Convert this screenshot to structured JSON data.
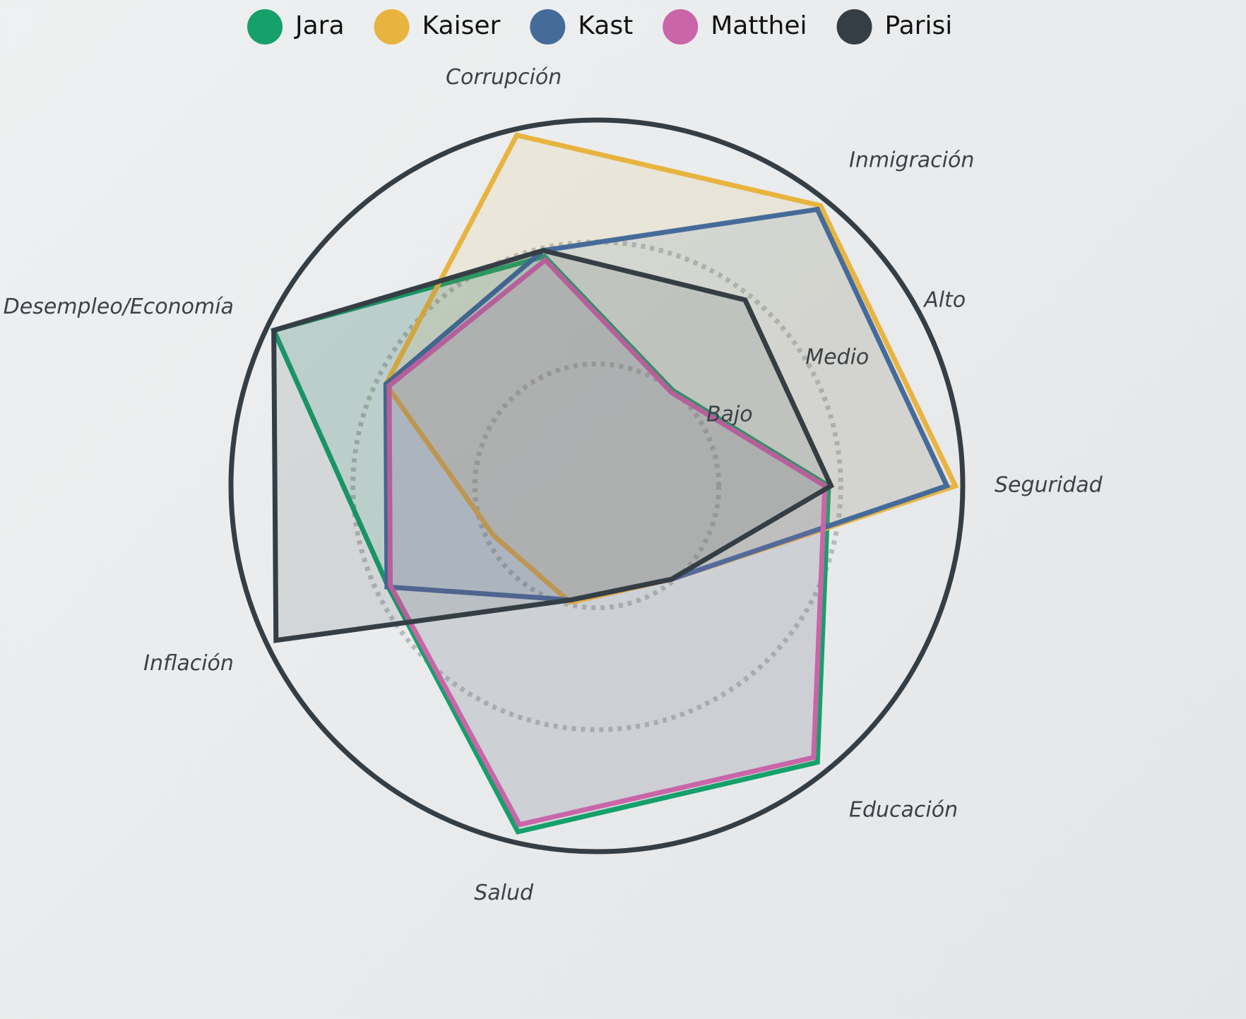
{
  "chart_data": {
    "type": "radar",
    "categories": [
      "Seguridad",
      "Inmigración",
      "Corrupción",
      "Desempleo/Economía",
      "Inflación",
      "Salud",
      "Educación"
    ],
    "series": [
      {
        "name": "Jara",
        "color": "#16a06a",
        "values": [
          1.9,
          1.0,
          1.93,
          2.94,
          1.9,
          2.91,
          2.9
        ]
      },
      {
        "name": "Kaiser",
        "color": "#e8b440",
        "values": [
          2.94,
          2.94,
          2.95,
          1.92,
          0.94,
          0.98,
          0.98
        ]
      },
      {
        "name": "Kast",
        "color": "#456b9a",
        "values": [
          2.87,
          2.9,
          1.98,
          1.92,
          1.91,
          0.96,
          0.98
        ]
      },
      {
        "name": "Matthei",
        "color": "#c965a8",
        "values": [
          1.87,
          0.98,
          1.9,
          1.89,
          1.88,
          2.85,
          2.85
        ]
      },
      {
        "name": "Parisi",
        "color": "#353e45",
        "values": [
          1.92,
          1.95,
          1.98,
          2.94,
          2.92,
          0.96,
          0.98
        ]
      }
    ],
    "ylim": [
      0,
      3
    ],
    "yticks": [
      {
        "value": 1,
        "label": "Bajo"
      },
      {
        "value": 2,
        "label": "Medio"
      },
      {
        "value": 3,
        "label": "Alto"
      }
    ]
  }
}
